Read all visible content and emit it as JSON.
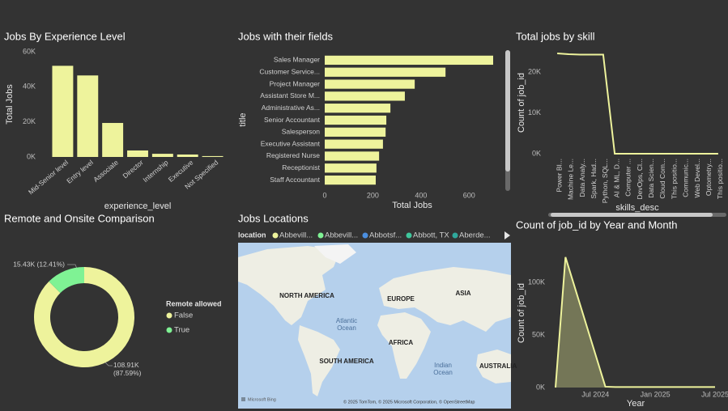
{
  "chart_data": [
    {
      "type": "bar",
      "title": "Jobs By Experience Level",
      "xlabel": "experience_level",
      "ylabel": "Total Jobs",
      "categories": [
        "Mid-Senior level",
        "Entry level",
        "Associate",
        "Director",
        "Internship",
        "Executive",
        "Not Specified"
      ],
      "values": [
        52000,
        46500,
        19400,
        3700,
        1800,
        1400,
        500
      ],
      "color": "#eef39c",
      "ylim": [
        0,
        60000
      ],
      "yticks": [
        {
          "value": 0,
          "label": "0K"
        },
        {
          "value": 20000,
          "label": "20K"
        },
        {
          "value": 40000,
          "label": "40K"
        },
        {
          "value": 60000,
          "label": "60K"
        }
      ]
    },
    {
      "type": "barh",
      "title": "Jobs with their fields",
      "xlabel": "Total Jobs",
      "ylabel": "title",
      "categories": [
        "Sales Manager",
        "Customer Service...",
        "Project Manager",
        "Assistant Store M...",
        "Administrative As...",
        "Senior Accountant",
        "Salesperson",
        "Executive Assistant",
        "Registered Nurse",
        "Receptionist",
        "Staff Accountant"
      ],
      "values": [
        700,
        502,
        374,
        333,
        273,
        256,
        253,
        242,
        226,
        215,
        212
      ],
      "color": "#eef39c",
      "xlim": [
        0,
        700
      ],
      "xticks": [
        0,
        200,
        400,
        600
      ]
    },
    {
      "type": "line",
      "title": "Total jobs by skill",
      "xlabel": "skills_desc",
      "ylabel": "Count of job_id",
      "categories": [
        "Power BI...",
        "Machine Le...",
        "Data Analy...",
        "Spark, Had...",
        "Python, SQL...",
        "AI & ML, D...",
        "Computer ...",
        "DevOps, Cl...",
        "Data Scien...",
        "Cloud Com...",
        "This positio...",
        "Communic...",
        "Web Devel...",
        "Optometry...",
        "This positio..."
      ],
      "values": [
        24600,
        24400,
        24300,
        24300,
        24300,
        0,
        0,
        0,
        0,
        0,
        0,
        0,
        0,
        0,
        0
      ],
      "color": "#eef39c",
      "ylim": [
        0,
        25000
      ],
      "yticks": [
        {
          "value": 0,
          "label": "0K"
        },
        {
          "value": 10000,
          "label": "10K"
        },
        {
          "value": 20000,
          "label": "20K"
        }
      ]
    },
    {
      "type": "donut",
      "title": "Remote and Onsite Comparison",
      "legend_title": "Remote allowed",
      "categories": [
        "False",
        "True"
      ],
      "values": [
        108910,
        15430
      ],
      "value_labels": [
        "108.91K (87.59%)",
        "15.43K (12.41%)"
      ],
      "colors": [
        "#eef39c",
        "#7ff294"
      ]
    },
    {
      "type": "map",
      "title": "Jobs Locations",
      "legend_title": "location",
      "series": [
        {
          "name": "Abbevill...",
          "color": "#eef39c"
        },
        {
          "name": "Abbevill...",
          "color": "#7ff294"
        },
        {
          "name": "Abbotsf...",
          "color": "#4b8fe0"
        },
        {
          "name": "Abbott, TX",
          "color": "#3fc79c"
        },
        {
          "name": "Aberde...",
          "color": "#2fa89c"
        }
      ],
      "labels": [
        "NORTH AMERICA",
        "EUROPE",
        "ASIA",
        "Atlantic",
        "Ocean",
        "AFRICA",
        "SOUTH AMERICA",
        "Indian",
        "Ocean",
        "AUSTRALIA"
      ],
      "attribution": [
        "Microsoft Bing",
        "© 2025 TomTom, © 2025 Microsoft Corporation, © OpenStreetMap"
      ]
    },
    {
      "type": "area",
      "title": "Count of job_id by Year and Month",
      "xlabel": "Year",
      "ylabel": "Count of job_id",
      "x": [
        "2024-03",
        "2024-04",
        "2024-08",
        "2024-09",
        "2024-10",
        "2024-11",
        "2024-12",
        "2025-01",
        "2025-02",
        "2025-03",
        "2025-04",
        "2025-05",
        "2025-06",
        "2025-07"
      ],
      "values": [
        0,
        124000,
        800,
        500,
        500,
        500,
        500,
        500,
        500,
        500,
        500,
        500,
        500,
        500
      ],
      "color": "#eef39c",
      "xlim": [
        "2024-03",
        "2025-07"
      ],
      "xticks": [
        {
          "value": "2024-07",
          "label": "Jul 2024"
        },
        {
          "value": "2025-01",
          "label": "Jan 2025"
        },
        {
          "value": "2025-07",
          "label": "Jul 2025"
        }
      ],
      "ylim": [
        0,
        130000
      ],
      "yticks": [
        {
          "value": 0,
          "label": "0K"
        },
        {
          "value": 50000,
          "label": "50K"
        },
        {
          "value": 100000,
          "label": "100K"
        }
      ]
    }
  ]
}
